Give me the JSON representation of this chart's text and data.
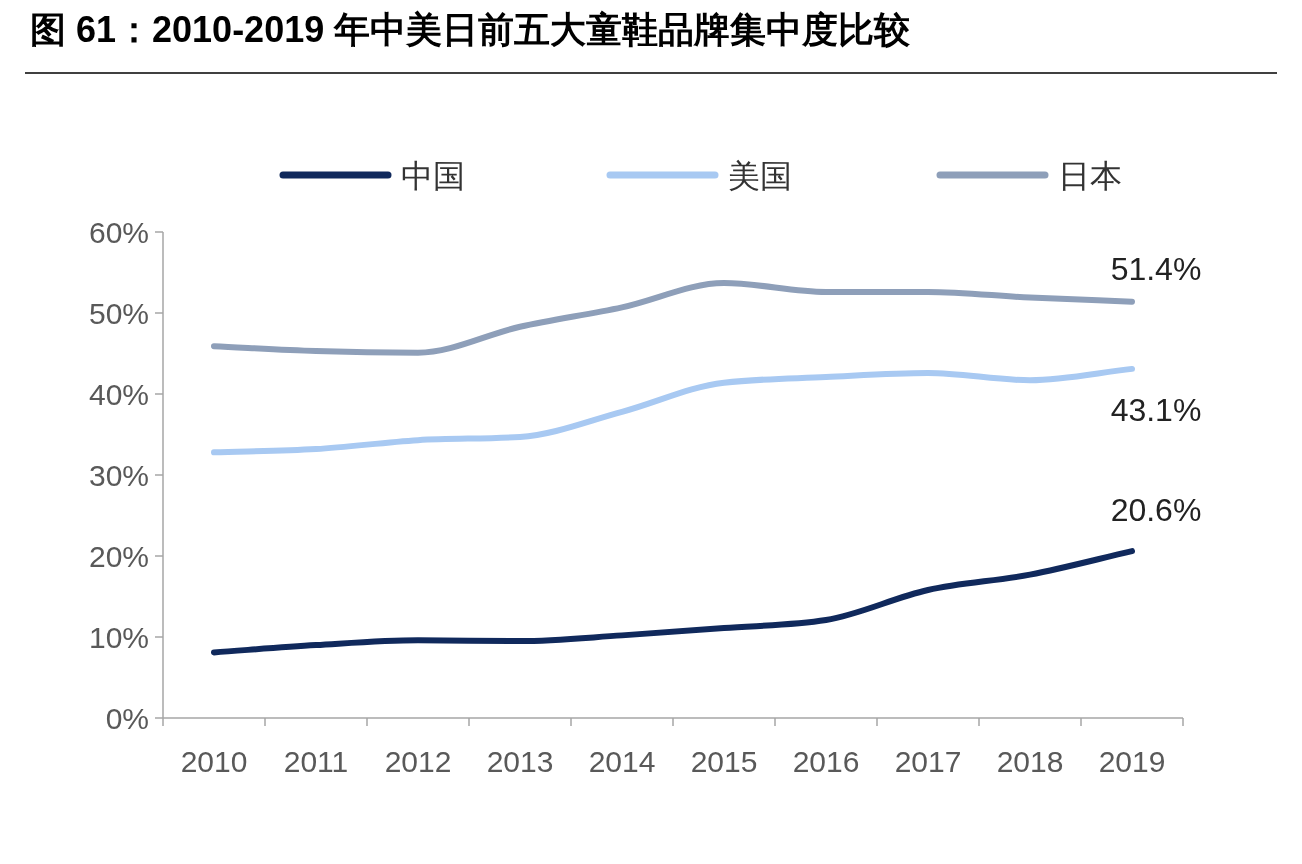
{
  "chart_data": {
    "type": "line",
    "title": "图 61：2010-2019 年中美日前五大童鞋品牌集中度比较",
    "categories": [
      "2010",
      "2011",
      "2012",
      "2013",
      "2014",
      "2015",
      "2016",
      "2017",
      "2018",
      "2019"
    ],
    "series": [
      {
        "name": "中国",
        "color": "#10295c",
        "values": [
          8.1,
          9.0,
          9.6,
          9.5,
          10.2,
          11.1,
          12.1,
          15.8,
          17.7,
          20.6
        ],
        "value_labels": [
          null,
          null,
          null,
          null,
          null,
          null,
          null,
          null,
          null,
          "20.6%"
        ]
      },
      {
        "name": "美国",
        "color": "#a8c9f2",
        "values": [
          32.8,
          33.2,
          34.3,
          34.7,
          37.8,
          41.4,
          42.1,
          42.6,
          41.7,
          43.1
        ],
        "value_labels": [
          null,
          null,
          null,
          null,
          null,
          null,
          null,
          null,
          null,
          "43.1%"
        ]
      },
      {
        "name": "日本",
        "color": "#8e9fb9",
        "values": [
          45.9,
          45.3,
          45.1,
          48.3,
          50.7,
          53.7,
          52.6,
          52.6,
          51.9,
          51.4
        ],
        "value_labels": [
          null,
          null,
          null,
          null,
          null,
          null,
          null,
          null,
          null,
          "51.4%"
        ]
      }
    ],
    "ylim": [
      0,
      60
    ],
    "yticks": [
      {
        "value": 0,
        "label": "0%"
      },
      {
        "value": 10,
        "label": "10%"
      },
      {
        "value": 20,
        "label": "20%"
      },
      {
        "value": 30,
        "label": "30%"
      },
      {
        "value": 40,
        "label": "40%"
      },
      {
        "value": 50,
        "label": "50%"
      },
      {
        "value": 60,
        "label": "60%"
      }
    ],
    "legend": "top",
    "grid": false,
    "marker": "none",
    "line_style": "solid"
  }
}
